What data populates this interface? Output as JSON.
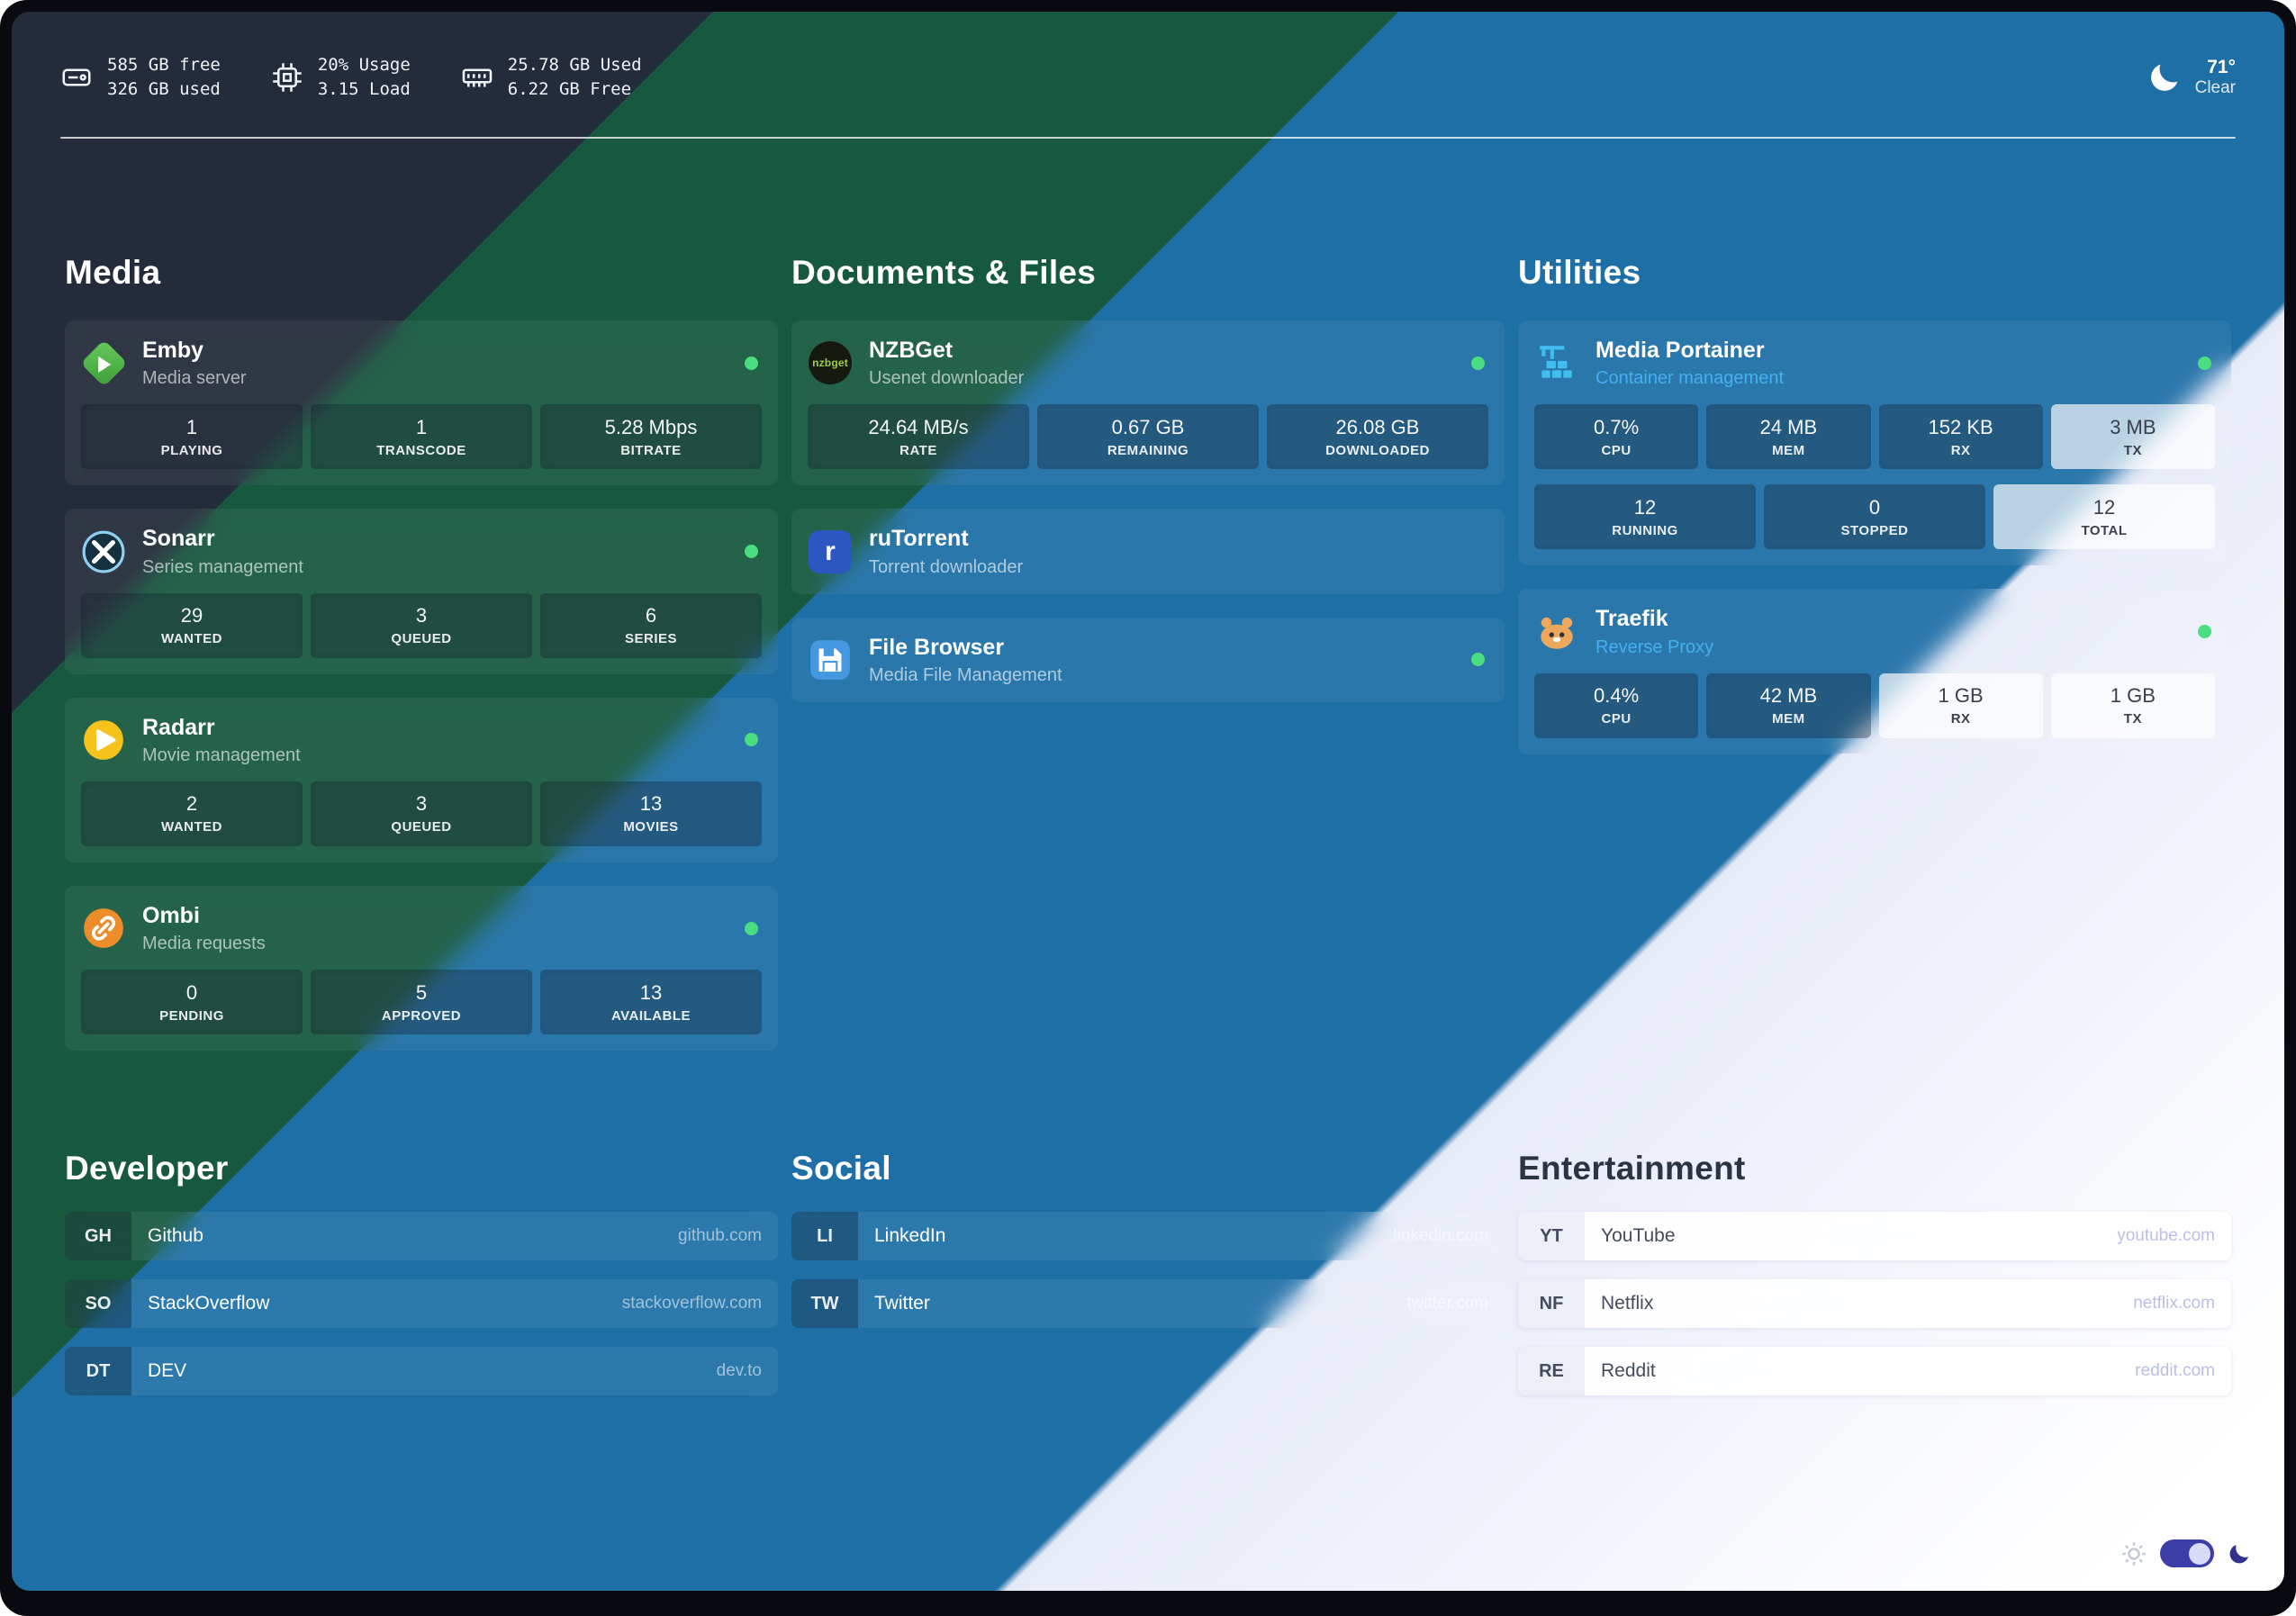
{
  "topbar": {
    "resources": [
      {
        "icon": "disk-icon",
        "lines": [
          "585 GB free",
          "326 GB used"
        ]
      },
      {
        "icon": "cpu-icon",
        "lines": [
          "20% Usage",
          "3.15 Load"
        ]
      },
      {
        "icon": "memory-icon",
        "lines": [
          "25.78 GB Used",
          "6.22 GB Free"
        ]
      }
    ],
    "weather": {
      "icon": "weather-moon-icon",
      "temperature": "71°",
      "condition": "Clear"
    }
  },
  "service_groups": [
    {
      "title": "Media",
      "services": [
        {
          "icon": "emby-icon",
          "name": "Emby",
          "description": "Media server",
          "status": "online",
          "stats": [
            [
              {
                "value": "1",
                "label": "PLAYING"
              },
              {
                "value": "1",
                "label": "TRANSCODE"
              },
              {
                "value": "5.28 Mbps",
                "label": "BITRATE"
              }
            ]
          ]
        },
        {
          "icon": "sonarr-icon",
          "name": "Sonarr",
          "description": "Series management",
          "status": "online",
          "stats": [
            [
              {
                "value": "29",
                "label": "WANTED"
              },
              {
                "value": "3",
                "label": "QUEUED"
              },
              {
                "value": "6",
                "label": "SERIES"
              }
            ]
          ]
        },
        {
          "icon": "radarr-icon",
          "name": "Radarr",
          "description": "Movie management",
          "status": "online",
          "stats": [
            [
              {
                "value": "2",
                "label": "WANTED"
              },
              {
                "value": "3",
                "label": "QUEUED"
              },
              {
                "value": "13",
                "label": "MOVIES"
              }
            ]
          ]
        },
        {
          "icon": "ombi-icon",
          "name": "Ombi",
          "description": "Media requests",
          "status": "online",
          "stats": [
            [
              {
                "value": "0",
                "label": "PENDING"
              },
              {
                "value": "5",
                "label": "APPROVED"
              },
              {
                "value": "13",
                "label": "AVAILABLE"
              }
            ]
          ]
        }
      ]
    },
    {
      "title": "Documents & Files",
      "services": [
        {
          "icon": "nzbget-icon",
          "name": "NZBGet",
          "description": "Usenet downloader",
          "status": "online",
          "stats": [
            [
              {
                "value": "24.64 MB/s",
                "label": "RATE"
              },
              {
                "value": "0.67 GB",
                "label": "REMAINING"
              },
              {
                "value": "26.08 GB",
                "label": "DOWNLOADED"
              }
            ]
          ]
        },
        {
          "icon": "rutorrent-icon",
          "name": "ruTorrent",
          "description": "Torrent downloader",
          "status": null,
          "stats": []
        },
        {
          "icon": "filebrowser-icon",
          "name": "File Browser",
          "description": "Media File Management",
          "status": "online",
          "stats": []
        }
      ]
    },
    {
      "title": "Utilities",
      "services": [
        {
          "icon": "portainer-icon",
          "name": "Media Portainer",
          "description": "Container management",
          "description_color": "#45b0ee",
          "status": "online",
          "stats": [
            [
              {
                "value": "0.7%",
                "label": "CPU"
              },
              {
                "value": "24 MB",
                "label": "MEM"
              },
              {
                "value": "152 KB",
                "label": "RX"
              },
              {
                "value": "3 MB",
                "label": "TX",
                "theme": "light"
              }
            ],
            [
              {
                "value": "12",
                "label": "RUNNING"
              },
              {
                "value": "0",
                "label": "STOPPED"
              },
              {
                "value": "12",
                "label": "TOTAL",
                "theme": "light"
              }
            ]
          ]
        },
        {
          "icon": "traefik-icon",
          "name": "Traefik",
          "description": "Reverse Proxy",
          "description_color": "#45b0ee",
          "status": "online",
          "stats": [
            [
              {
                "value": "0.4%",
                "label": "CPU"
              },
              {
                "value": "42 MB",
                "label": "MEM"
              },
              {
                "value": "1 GB",
                "label": "RX",
                "theme": "light"
              },
              {
                "value": "1 GB",
                "label": "TX",
                "theme": "light"
              }
            ]
          ]
        }
      ]
    }
  ],
  "bookmark_groups": [
    {
      "title": "Developer",
      "theme": "dark",
      "items": [
        {
          "abbr": "GH",
          "name": "Github",
          "url": "github.com"
        },
        {
          "abbr": "SO",
          "name": "StackOverflow",
          "url": "stackoverflow.com"
        },
        {
          "abbr": "DT",
          "name": "DEV",
          "url": "dev.to"
        }
      ]
    },
    {
      "title": "Social",
      "theme": "dark",
      "items": [
        {
          "abbr": "LI",
          "name": "LinkedIn",
          "url": "linkedin.com"
        },
        {
          "abbr": "TW",
          "name": "Twitter",
          "url": "twitter.com"
        }
      ]
    },
    {
      "title": "Entertainment",
      "theme": "light",
      "items": [
        {
          "abbr": "YT",
          "name": "YouTube",
          "url": "youtube.com"
        },
        {
          "abbr": "NF",
          "name": "Netflix",
          "url": "netflix.com"
        },
        {
          "abbr": "RE",
          "name": "Reddit",
          "url": "reddit.com"
        }
      ]
    }
  ],
  "theme_toggle": {
    "knob_position": "right"
  },
  "colors": {
    "status_online": "#4ade80",
    "band_navy": "#242b3a",
    "band_green": "#17593f",
    "band_blue": "#1d6fa6",
    "band_light": "#ffffff",
    "subtitle_accent_blue": "#45b0ee"
  }
}
